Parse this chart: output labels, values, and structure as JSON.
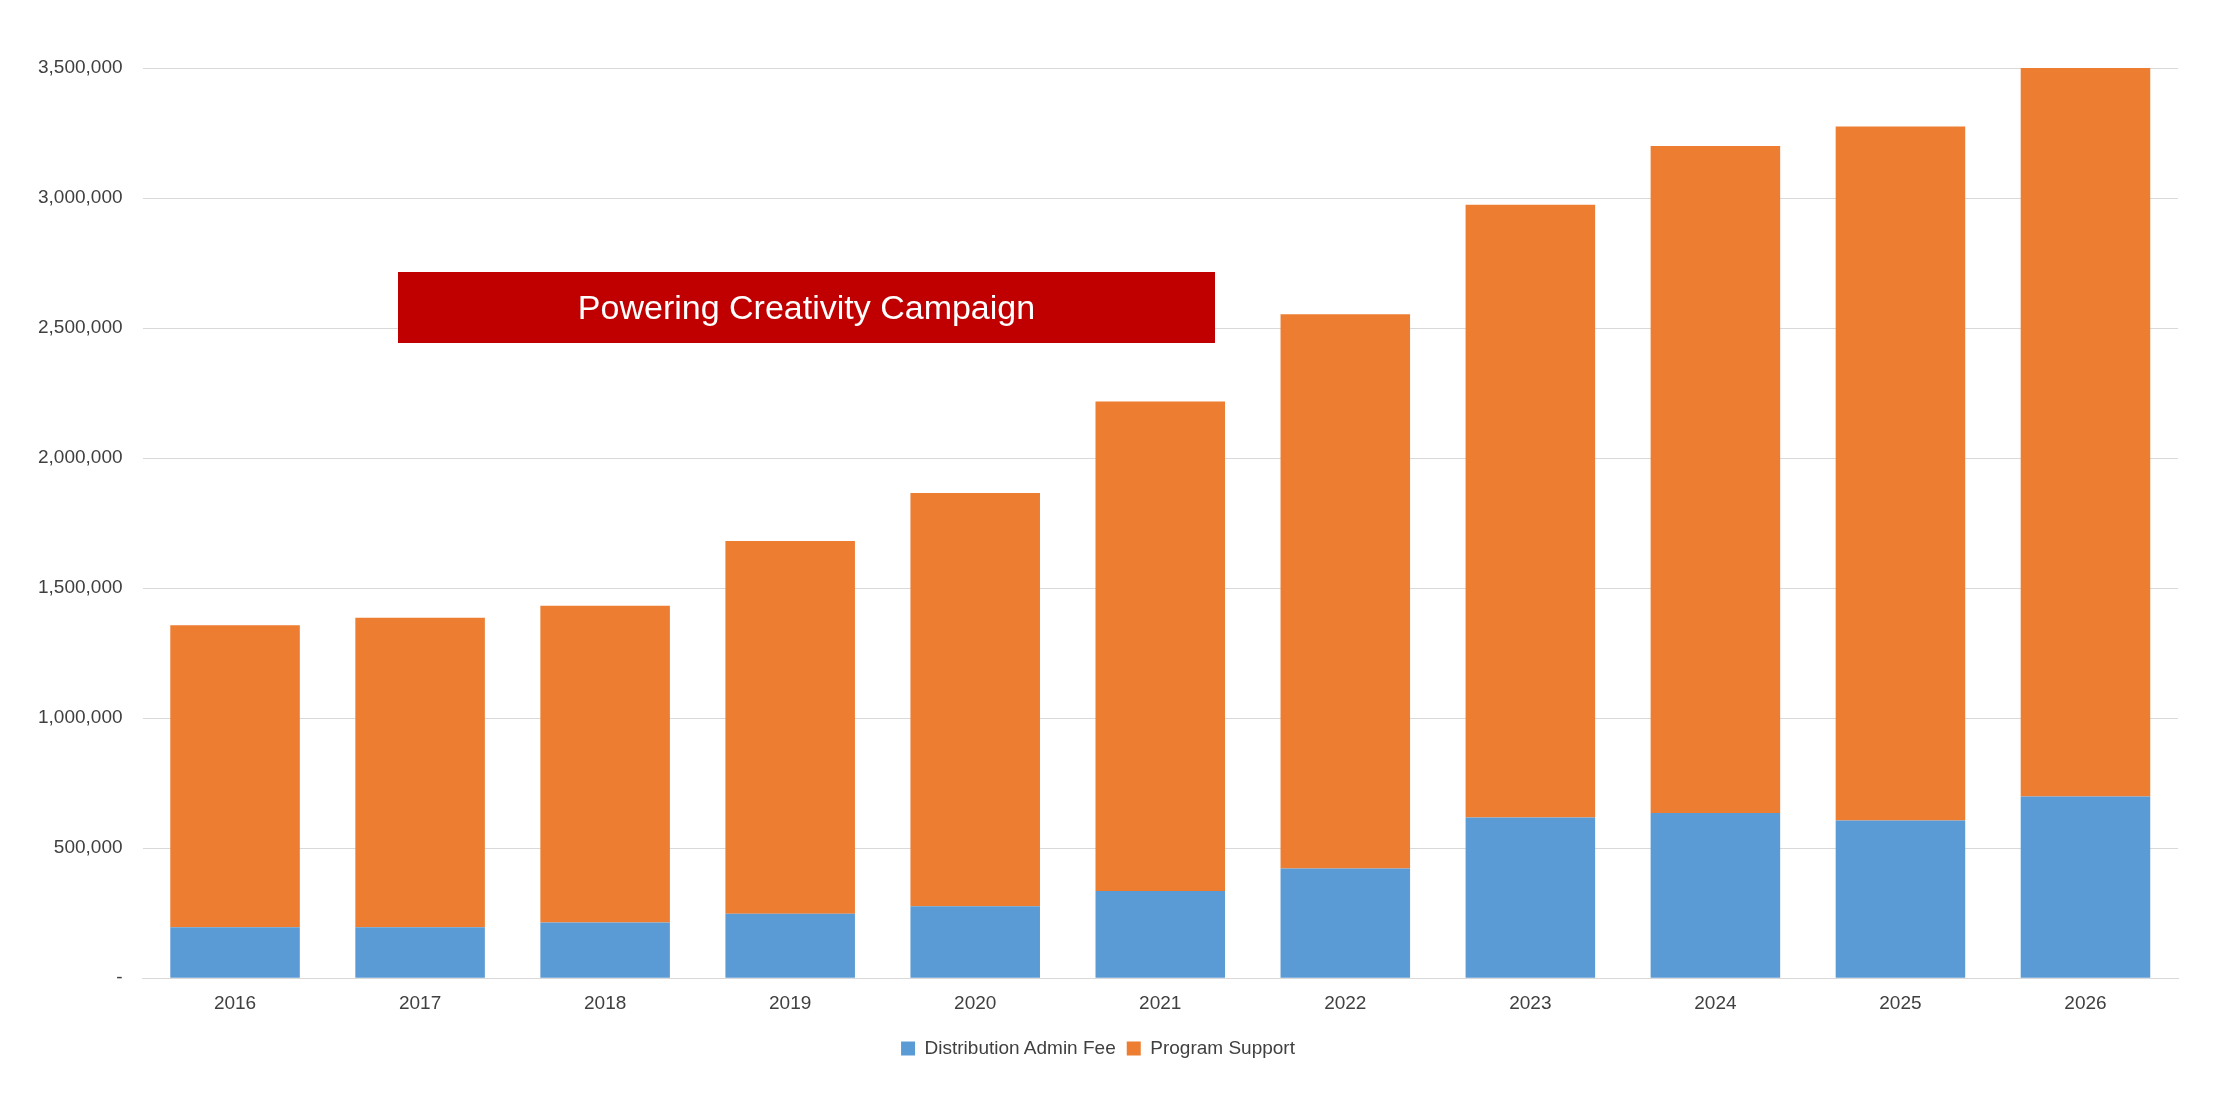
{
  "chart_data": {
    "type": "bar",
    "stacked": true,
    "categories": [
      "2016",
      "2017",
      "2018",
      "2019",
      "2020",
      "2021",
      "2022",
      "2023",
      "2024",
      "2025",
      "2026"
    ],
    "series": [
      {
        "name": "Distribution Admin Fee",
        "color": "#5b9bd5",
        "values": [
          196000,
          196000,
          214000,
          248000,
          277000,
          335000,
          422000,
          618000,
          635000,
          606000,
          699000
        ]
      },
      {
        "name": "Program Support",
        "color": "#ed7d31",
        "values": [
          1161000,
          1190000,
          1218000,
          1433000,
          1589000,
          1883000,
          2131000,
          2356000,
          2565000,
          2669000,
          2813000
        ]
      }
    ],
    "ylim": [
      0,
      3500000
    ],
    "yticks": [
      {
        "value": 0,
        "label": "-"
      },
      {
        "value": 500000,
        "label": "500,000"
      },
      {
        "value": 1000000,
        "label": "1,000,000"
      },
      {
        "value": 1500000,
        "label": "1,500,000"
      },
      {
        "value": 2000000,
        "label": "2,000,000"
      },
      {
        "value": 2500000,
        "label": "2,500,000"
      },
      {
        "value": 3000000,
        "label": "3,000,000"
      },
      {
        "value": 3500000,
        "label": "3,500,000"
      }
    ],
    "grid": "y",
    "legend": "bottom",
    "annotations": [
      "Powering Creativity Campaign"
    ]
  }
}
